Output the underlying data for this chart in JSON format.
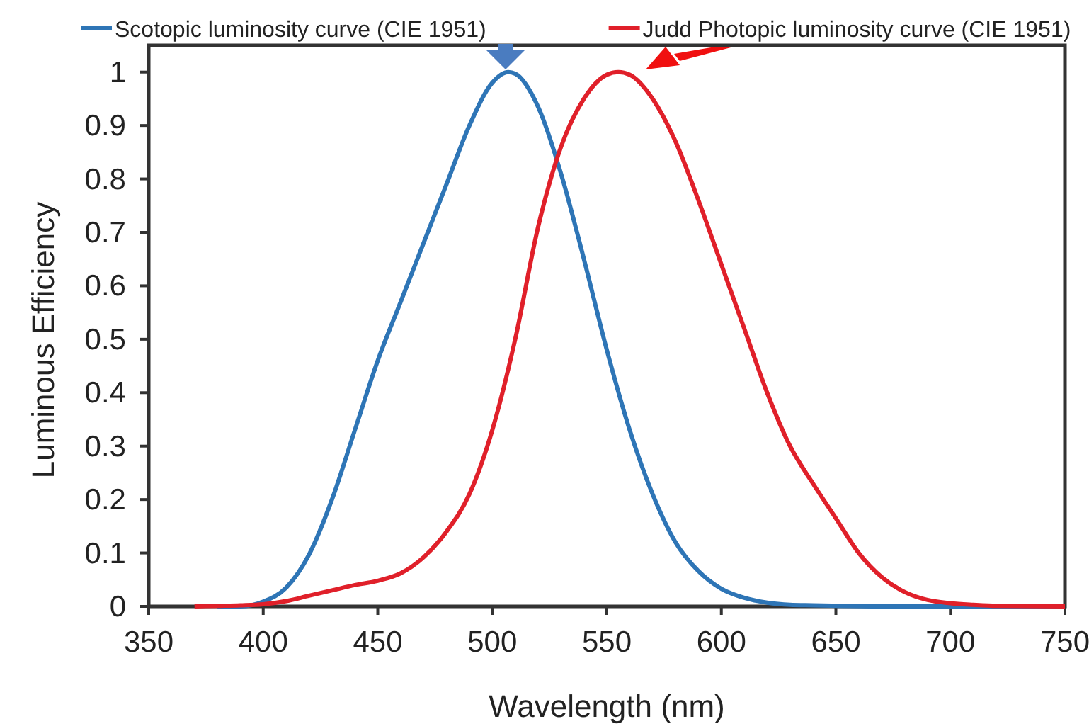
{
  "chart_data": {
    "type": "line",
    "xlabel": "Wavelength (nm)",
    "ylabel": "Luminous Efficiency",
    "xlim": [
      350,
      750
    ],
    "xticks": [
      350,
      400,
      450,
      500,
      550,
      600,
      650,
      700,
      750
    ],
    "ylim": [
      0,
      1.05
    ],
    "yticks": [
      0,
      0.1,
      0.2,
      0.3,
      0.4,
      0.5,
      0.6,
      0.7,
      0.8,
      0.9,
      1
    ],
    "grid": false,
    "legend": "top",
    "marker": "none",
    "line_style": "solid",
    "series": [
      {
        "name": "Scotopic luminosity curve (CIE 1951)",
        "color": "#2e75b6",
        "x": [
          380,
          390,
          400,
          410,
          420,
          430,
          440,
          450,
          460,
          470,
          480,
          490,
          500,
          507,
          510,
          520,
          530,
          540,
          550,
          560,
          570,
          580,
          590,
          600,
          610,
          620,
          630,
          640,
          650,
          670,
          700,
          750
        ],
        "values": [
          0,
          0,
          0.009,
          0.035,
          0.097,
          0.2,
          0.33,
          0.46,
          0.57,
          0.68,
          0.79,
          0.9,
          0.98,
          1,
          0.997,
          0.935,
          0.81,
          0.65,
          0.48,
          0.33,
          0.21,
          0.12,
          0.066,
          0.033,
          0.016,
          0.007,
          0.003,
          0.002,
          0.001,
          0,
          0,
          0
        ]
      },
      {
        "name": "Judd Photopic luminosity curve (CIE 1951)",
        "color": "#e0202a",
        "x": [
          370,
          380,
          390,
          400,
          410,
          420,
          430,
          440,
          450,
          460,
          470,
          480,
          490,
          500,
          510,
          520,
          530,
          540,
          550,
          555,
          560,
          570,
          580,
          590,
          600,
          610,
          620,
          630,
          640,
          650,
          660,
          670,
          680,
          690,
          700,
          710,
          720,
          750
        ],
        "values": [
          0,
          0.001,
          0.002,
          0.004,
          0.01,
          0.02,
          0.03,
          0.04,
          0.048,
          0.062,
          0.092,
          0.14,
          0.21,
          0.33,
          0.5,
          0.71,
          0.86,
          0.95,
          0.995,
          1,
          0.995,
          0.95,
          0.87,
          0.76,
          0.64,
          0.52,
          0.4,
          0.3,
          0.23,
          0.165,
          0.1,
          0.055,
          0.027,
          0.012,
          0.006,
          0.003,
          0.001,
          0
        ]
      }
    ]
  }
}
